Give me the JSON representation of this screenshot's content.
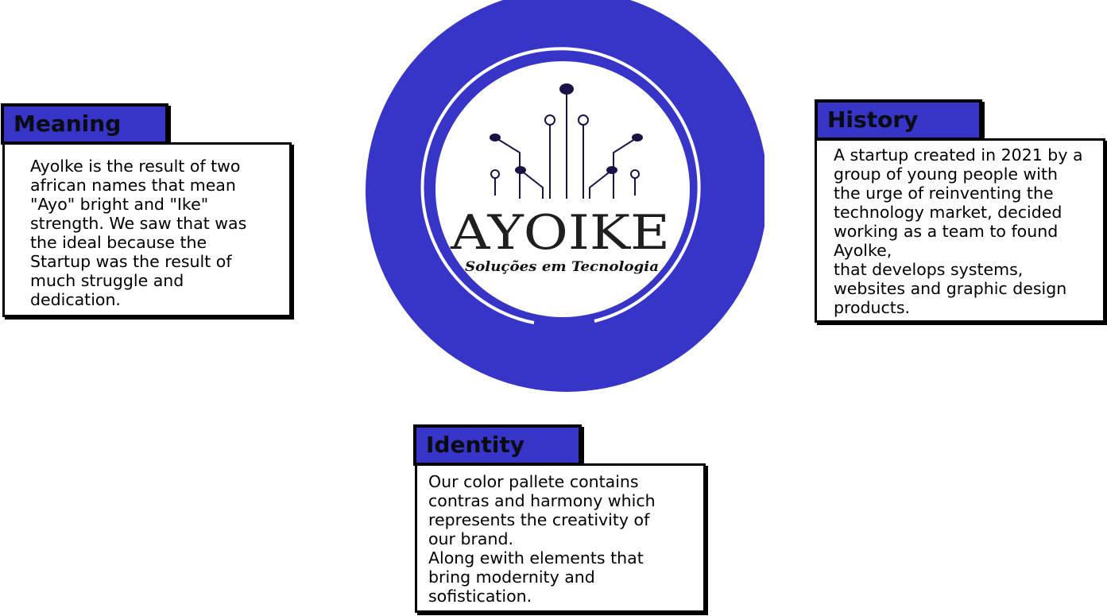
{
  "colors": {
    "brand_blue": "#3734c8",
    "dark_navy": "#1a1446",
    "ink": "#000000",
    "paper": "#ffffff"
  },
  "logo": {
    "wordmark": "AYOIKE",
    "tagline": "Soluções em Tecnologia",
    "icon": "circuit-tree-icon"
  },
  "cards": {
    "meaning": {
      "title": "Meaning",
      "body": "Ayolke is the result of two\nafrican names that mean\n\"Ayo\" bright and \"Ike\"\nstrength. We saw that was\nthe ideal because the\nStartup was the result of\nmuch struggle and\ndedication."
    },
    "history": {
      "title": "History",
      "body": "A startup created in 2021 by a\ngroup of young people with\nthe urge of reinventing the\ntechnology market, decided\nworking as a team to found\nAyolke,\nthat develops systems,\nwebsites and graphic design\nproducts."
    },
    "identity": {
      "title": "Identity",
      "body": "Our color pallete contains\ncontras and harmony which\nrepresents the creativity of\nour brand.\nAlong ewith elements that\nbring modernity and\nsofistication."
    }
  }
}
